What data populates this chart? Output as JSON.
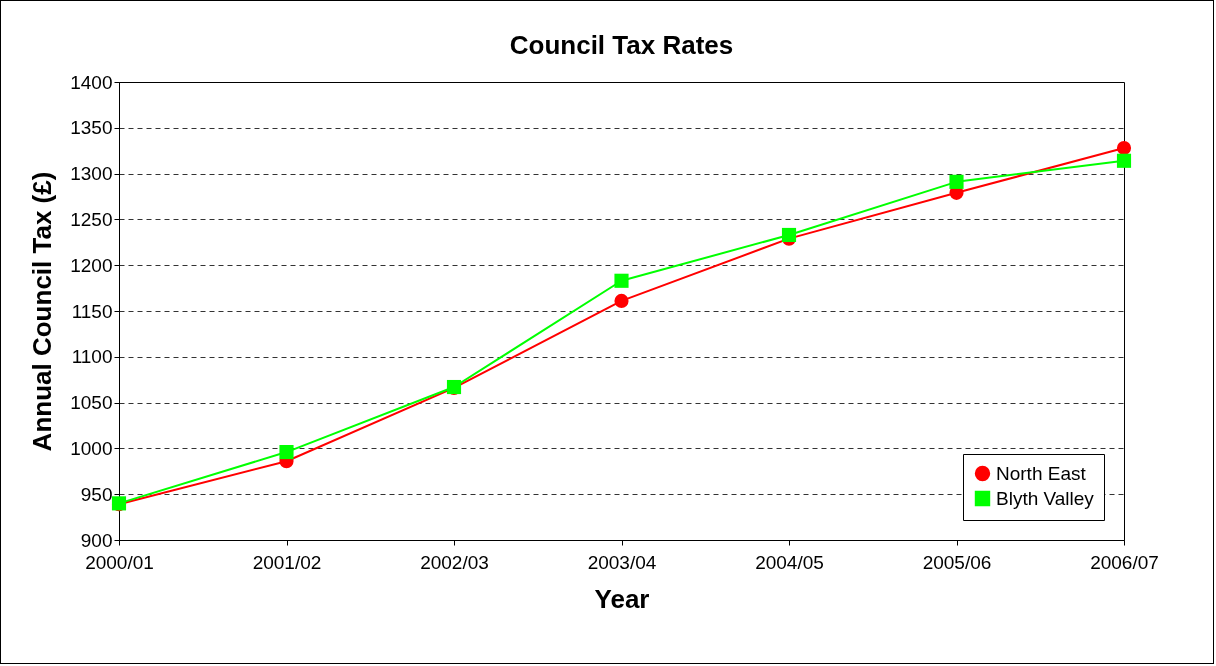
{
  "chart_data": {
    "type": "line",
    "title": "Council Tax Rates",
    "xlabel": "Year",
    "ylabel": "Annual Council Tax (£)",
    "categories": [
      "2000/01",
      "2001/02",
      "2002/03",
      "2003/04",
      "2004/05",
      "2005/06",
      "2006/07"
    ],
    "series": [
      {
        "name": "North East",
        "color": "#ff0000",
        "marker": "circle",
        "values": [
          939,
          986,
          1066,
          1161,
          1229,
          1279,
          1328
        ]
      },
      {
        "name": "Blyth Valley",
        "color": "#00ff00",
        "marker": "square",
        "values": [
          940,
          996,
          1067,
          1183,
          1233,
          1291,
          1314
        ]
      }
    ],
    "ylim": [
      900,
      1400
    ],
    "yticks": [
      900,
      950,
      1000,
      1050,
      1100,
      1150,
      1200,
      1250,
      1300,
      1350,
      1400
    ],
    "grid": "y",
    "legend": "bottom right",
    "line_style": "solid"
  }
}
